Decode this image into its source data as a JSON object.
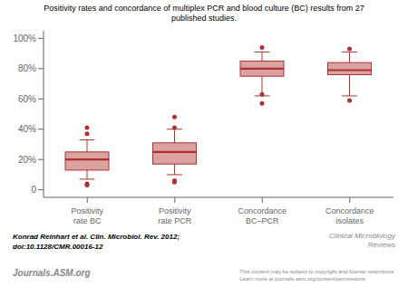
{
  "chart_data": {
    "type": "box",
    "title": "Positivity rates and concordance of multiplex PCR and blood culture (BC) results from 27\npublished studies.",
    "categories": [
      "Positivity\nrate BC",
      "Positivity\nrate PCR",
      "Concordance\nBC–PCR",
      "Concordance\nisolates"
    ],
    "box_stats": [
      {
        "whislo": 0.07,
        "q1": 0.13,
        "med": 0.2,
        "q3": 0.25,
        "whishi": 0.33,
        "fliers": [
          0.03,
          0.04,
          0.37,
          0.41
        ]
      },
      {
        "whislo": 0.1,
        "q1": 0.17,
        "med": 0.25,
        "q3": 0.31,
        "whishi": 0.4,
        "fliers": [
          0.05,
          0.06,
          0.41,
          0.48
        ]
      },
      {
        "whislo": 0.62,
        "q1": 0.75,
        "med": 0.8,
        "q3": 0.85,
        "whishi": 0.91,
        "fliers": [
          0.57,
          0.63,
          0.94
        ]
      },
      {
        "whislo": 0.62,
        "q1": 0.76,
        "med": 0.79,
        "q3": 0.84,
        "whishi": 0.91,
        "fliers": [
          0.59,
          0.93
        ]
      }
    ],
    "color": "#b03030",
    "ylim": [
      -0.05,
      1.05
    ],
    "yticks": [
      0,
      {
        "value": 0.2,
        "label": "20%"
      },
      {
        "value": 0.4,
        "label": "40%"
      },
      {
        "value": 0.6,
        "label": "60%"
      },
      {
        "value": 0.8,
        "label": "80%"
      },
      {
        "value": 1.0,
        "label": "100%"
      }
    ],
    "grid": false,
    "annotations": [
      "Konrad Reinhart et al. Clin. Microbiol. Rev. 2012;",
      "doi:10.1128/CMR.00016-12",
      "Journals.ASM.org",
      "This content may be subject to copyright and license restrictions.\nLearn more at journals.asm.org/content/permissions",
      "Clinical Microbiology\nReviews"
    ]
  }
}
